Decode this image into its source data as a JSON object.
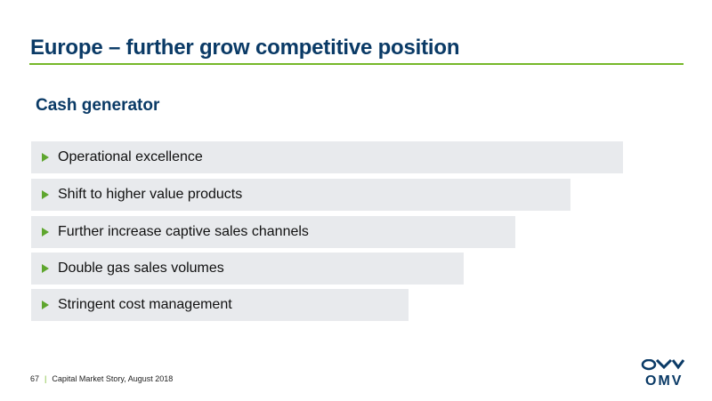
{
  "slide": {
    "title": "Europe – further grow competitive position",
    "subtitle": "Cash generator",
    "accent_color": "#76b82a",
    "title_color": "#0a3a66",
    "bullet_icon": "play-arrow-icon",
    "items": [
      {
        "label": "Operational excellence"
      },
      {
        "label": "Shift to higher value products"
      },
      {
        "label": "Further increase captive sales channels"
      },
      {
        "label": "Double gas sales volumes"
      },
      {
        "label": "Stringent cost management"
      }
    ]
  },
  "footer": {
    "page_number": "67",
    "caption": "Capital Market Story, August 2018"
  },
  "logo": {
    "text": "OMV"
  }
}
